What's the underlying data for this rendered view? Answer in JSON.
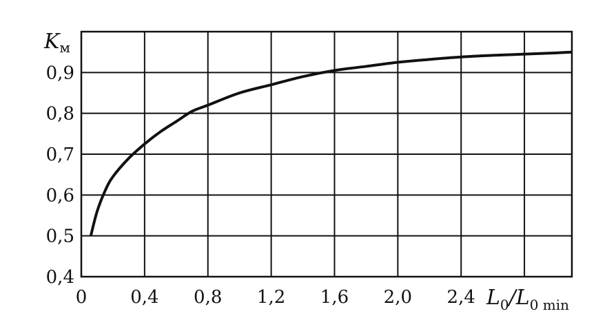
{
  "chart_data": {
    "type": "line",
    "ylabel": {
      "main": "K",
      "sub": "м"
    },
    "xlabel": {
      "main": "L",
      "sub1": "0",
      "slash": "/L",
      "sub2": "0 min"
    },
    "xlim": [
      0,
      3.1
    ],
    "ylim": [
      0.4,
      1.0
    ],
    "x_ticks": [
      "0",
      "0,4",
      "0,8",
      "1,2",
      "1,6",
      "2,0",
      "2,4"
    ],
    "x_tick_values": [
      0,
      0.4,
      0.8,
      1.2,
      1.6,
      2.0,
      2.4
    ],
    "y_ticks": [
      "0,4",
      "0,5",
      "0,6",
      "0,7",
      "0,8",
      "0,9"
    ],
    "y_tick_values": [
      0.4,
      0.5,
      0.6,
      0.7,
      0.8,
      0.9
    ],
    "grid": true,
    "series": [
      {
        "x": [
          0.06,
          0.1,
          0.15,
          0.2,
          0.3,
          0.4,
          0.5,
          0.6,
          0.7,
          0.8,
          1.0,
          1.2,
          1.4,
          1.6,
          1.8,
          2.0,
          2.2,
          2.4,
          2.6,
          2.8,
          3.0,
          3.1
        ],
        "y": [
          0.5,
          0.56,
          0.61,
          0.645,
          0.69,
          0.725,
          0.755,
          0.78,
          0.805,
          0.82,
          0.85,
          0.87,
          0.89,
          0.905,
          0.915,
          0.925,
          0.932,
          0.938,
          0.942,
          0.945,
          0.948,
          0.95
        ]
      }
    ]
  }
}
